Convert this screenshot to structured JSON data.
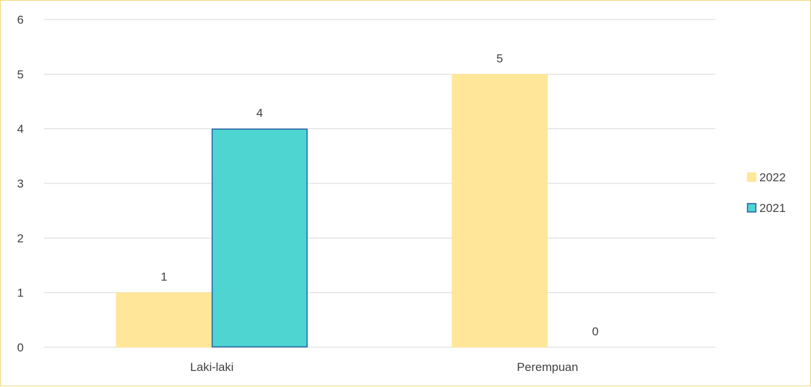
{
  "chart_data": {
    "type": "bar",
    "categories": [
      "Laki-laki",
      "Perempuan"
    ],
    "series": [
      {
        "name": "2022",
        "values": [
          1,
          5
        ],
        "color": "#ffe699",
        "stroke": "#ffe699"
      },
      {
        "name": "2021",
        "values": [
          4,
          0
        ],
        "color": "#4fd5d1",
        "stroke": "#1f5fa8"
      }
    ],
    "ylim": [
      0,
      6
    ],
    "yticks": [
      0,
      1,
      2,
      3,
      4,
      5,
      6
    ],
    "grid": true,
    "legend": "right",
    "data_labels": true
  }
}
